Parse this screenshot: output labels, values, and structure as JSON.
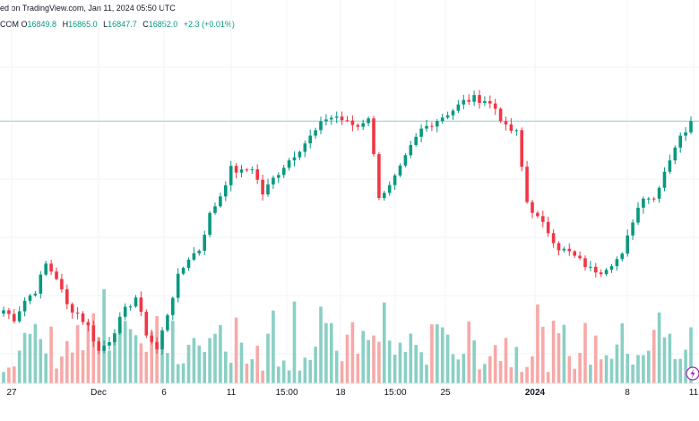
{
  "header": {
    "text": "ed on TradingView.com, Jan 11, 2024 05:50 UTC"
  },
  "ohlc": {
    "symbol": "COM",
    "open_label": "O",
    "open": "16849.8",
    "high_label": "H",
    "high": "16865.0",
    "low_label": "L",
    "low": "16847.7",
    "close_label": "C",
    "close": "16852.0",
    "change": "+2.3 (+0.01%)"
  },
  "colors": {
    "up": "#089981",
    "down": "#f23645",
    "volume_up": "#89cfc4",
    "volume_down": "#f7a9a7",
    "grid": "#f0f3fa",
    "last_price_line": "#8fd3c6",
    "text": "#131722"
  },
  "chart_data": {
    "type": "candlestick",
    "title": "",
    "xlabel": "",
    "ylabel": "",
    "grid": true,
    "x_ticks": [
      {
        "label": "27",
        "bold": false
      },
      {
        "label": "Dec",
        "bold": false
      },
      {
        "label": "6",
        "bold": false
      },
      {
        "label": "11",
        "bold": false
      },
      {
        "label": "15:00",
        "bold": false
      },
      {
        "label": "18",
        "bold": false
      },
      {
        "label": "15:00",
        "bold": false
      },
      {
        "label": "25",
        "bold": false
      },
      {
        "label": "2024",
        "bold": true
      },
      {
        "label": "8",
        "bold": false
      },
      {
        "label": "11",
        "bold": false
      }
    ],
    "last_price": 16852.0,
    "close_path": [
      [
        0,
        15700
      ],
      [
        2,
        15650
      ],
      [
        4,
        15760
      ],
      [
        6,
        15820
      ],
      [
        8,
        15980
      ],
      [
        10,
        15900
      ],
      [
        12,
        15730
      ],
      [
        14,
        15680
      ],
      [
        16,
        15600
      ],
      [
        18,
        15450
      ],
      [
        20,
        15520
      ],
      [
        23,
        15700
      ],
      [
        25,
        15780
      ],
      [
        27,
        15560
      ],
      [
        29,
        15460
      ],
      [
        31,
        15680
      ],
      [
        33,
        15900
      ],
      [
        35,
        16020
      ],
      [
        37,
        16070
      ],
      [
        39,
        16280
      ],
      [
        41,
        16400
      ],
      [
        43,
        16560
      ],
      [
        45,
        16540
      ],
      [
        47,
        16570
      ],
      [
        49,
        16410
      ],
      [
        51,
        16500
      ],
      [
        53,
        16580
      ],
      [
        55,
        16650
      ],
      [
        57,
        16720
      ],
      [
        59,
        16790
      ],
      [
        61,
        16870
      ],
      [
        63,
        16880
      ],
      [
        65,
        16840
      ],
      [
        67,
        16820
      ],
      [
        69,
        16880
      ],
      [
        71,
        16400
      ],
      [
        73,
        16450
      ],
      [
        75,
        16560
      ],
      [
        77,
        16690
      ],
      [
        79,
        16800
      ],
      [
        81,
        16840
      ],
      [
        83,
        16880
      ],
      [
        85,
        16920
      ],
      [
        87,
        16970
      ],
      [
        89,
        16990
      ],
      [
        91,
        16980
      ],
      [
        93,
        16930
      ],
      [
        95,
        16810
      ],
      [
        97,
        16780
      ],
      [
        99,
        16360
      ],
      [
        101,
        16260
      ],
      [
        103,
        16180
      ],
      [
        105,
        16080
      ],
      [
        107,
        16050
      ],
      [
        109,
        16000
      ],
      [
        111,
        15950
      ],
      [
        113,
        15940
      ],
      [
        115,
        15990
      ],
      [
        117,
        16030
      ],
      [
        119,
        16250
      ],
      [
        121,
        16400
      ],
      [
        123,
        16380
      ],
      [
        125,
        16550
      ],
      [
        127,
        16700
      ],
      [
        129,
        16800
      ],
      [
        130,
        16852
      ]
    ],
    "volume_min": 0,
    "volume_max": 100
  }
}
